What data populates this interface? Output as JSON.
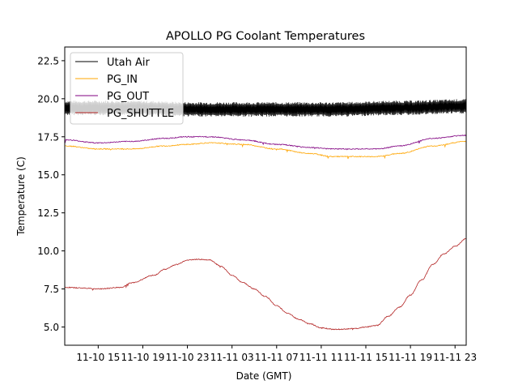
{
  "chart_data": {
    "type": "line",
    "title": "APOLLO PG Coolant Temperatures",
    "xlabel": "Date (GMT)",
    "ylabel": "Temperature (C)",
    "x_units": "hours since 11-10 12:00 GMT",
    "xlim": [
      0,
      36
    ],
    "ylim": [
      3.8,
      23.4
    ],
    "x_ticks": [
      3,
      7,
      11,
      15,
      19,
      23,
      27,
      31,
      35
    ],
    "x_tick_labels": [
      "11-10 15",
      "11-10 19",
      "11-10 23",
      "11-11 03",
      "11-11 07",
      "11-11 11",
      "11-11 15",
      "11-11 19",
      "11-11 23"
    ],
    "y_ticks": [
      5.0,
      7.5,
      10.0,
      12.5,
      15.0,
      17.5,
      20.0,
      22.5
    ],
    "y_tick_labels": [
      "5.0",
      "7.5",
      "10.0",
      "12.5",
      "15.0",
      "17.5",
      "20.0",
      "22.5"
    ],
    "grid": false,
    "legend_position": "top-left",
    "series": [
      {
        "name": "Utah Air",
        "color": "#000000",
        "oscillating": true,
        "amplitude": 0.4,
        "x": [
          0,
          6,
          12,
          18,
          24,
          30,
          36
        ],
        "y": [
          19.4,
          19.4,
          19.3,
          19.3,
          19.3,
          19.4,
          19.5
        ]
      },
      {
        "name": "PG_IN",
        "color": "#FFA500",
        "x": [
          0,
          3,
          6,
          9,
          11,
          13,
          16,
          19,
          22,
          24,
          26,
          28,
          30,
          33,
          36
        ],
        "y": [
          16.9,
          16.7,
          16.7,
          16.9,
          17.0,
          17.1,
          17.0,
          16.7,
          16.4,
          16.2,
          16.2,
          16.2,
          16.4,
          16.9,
          17.2
        ]
      },
      {
        "name": "PG_OUT",
        "color": "#800080",
        "x": [
          0,
          3,
          6,
          9,
          11,
          13,
          16,
          19,
          22,
          24,
          26,
          28,
          30,
          33,
          36
        ],
        "y": [
          17.3,
          17.1,
          17.2,
          17.4,
          17.5,
          17.5,
          17.3,
          17.0,
          16.8,
          16.7,
          16.7,
          16.7,
          16.9,
          17.4,
          17.6
        ]
      },
      {
        "name": "PG_SHUTTLE",
        "color": "#B22222",
        "x": [
          0,
          2,
          3,
          5,
          6,
          8,
          9,
          10,
          11,
          12,
          13,
          14,
          15,
          16,
          17,
          18,
          19,
          20,
          21,
          22,
          23,
          24,
          25,
          26,
          27,
          28,
          29,
          30,
          31,
          32,
          33,
          34,
          35,
          36
        ],
        "y": [
          7.6,
          7.55,
          7.5,
          7.6,
          7.9,
          8.4,
          8.8,
          9.1,
          9.4,
          9.45,
          9.4,
          9.0,
          8.4,
          7.9,
          7.5,
          7.0,
          6.4,
          5.9,
          5.5,
          5.2,
          4.95,
          4.85,
          4.85,
          4.9,
          5.0,
          5.1,
          5.7,
          6.3,
          7.1,
          8.1,
          9.1,
          9.8,
          10.3,
          10.8
        ]
      }
    ]
  }
}
